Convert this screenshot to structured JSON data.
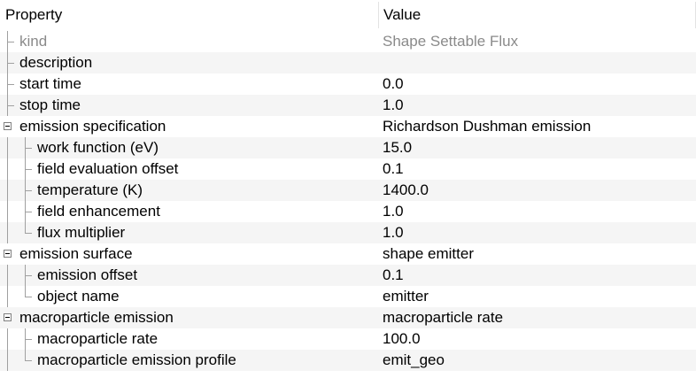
{
  "header": {
    "property": "Property",
    "value": "Value"
  },
  "rows": [
    {
      "label": "kind",
      "value": "Shape Settable Flux",
      "level": 0,
      "type": "leaf",
      "disabled": true
    },
    {
      "label": "description",
      "value": "",
      "level": 0,
      "type": "leaf"
    },
    {
      "label": "start time",
      "value": "0.0",
      "level": 0,
      "type": "leaf"
    },
    {
      "label": "stop time",
      "value": "1.0",
      "level": 0,
      "type": "leaf"
    },
    {
      "label": "emission specification",
      "value": "Richardson Dushman emission",
      "level": 0,
      "type": "group"
    },
    {
      "label": "work function (eV)",
      "value": "15.0",
      "level": 1,
      "type": "leaf"
    },
    {
      "label": "field evaluation offset",
      "value": "0.1",
      "level": 1,
      "type": "leaf"
    },
    {
      "label": "temperature (K)",
      "value": "1400.0",
      "level": 1,
      "type": "leaf"
    },
    {
      "label": "field enhancement",
      "value": "1.0",
      "level": 1,
      "type": "leaf"
    },
    {
      "label": "flux multiplier",
      "value": "1.0",
      "level": 1,
      "type": "leaf"
    },
    {
      "label": "emission surface",
      "value": "shape emitter",
      "level": 0,
      "type": "group"
    },
    {
      "label": "emission offset",
      "value": "0.1",
      "level": 1,
      "type": "leaf"
    },
    {
      "label": "object name",
      "value": "emitter",
      "level": 1,
      "type": "leaf"
    },
    {
      "label": "macroparticle emission",
      "value": "macroparticle rate",
      "level": 0,
      "type": "group"
    },
    {
      "label": "macroparticle rate",
      "value": "100.0",
      "level": 1,
      "type": "leaf"
    },
    {
      "label": "macroparticle emission profile",
      "value": "emit_geo",
      "level": 1,
      "type": "leaf"
    }
  ]
}
